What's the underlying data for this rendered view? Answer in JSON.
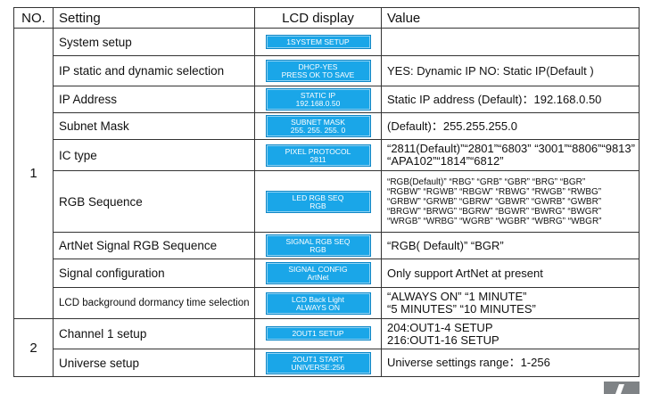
{
  "headers": {
    "no": "NO.",
    "setting": "Setting",
    "lcd": "LCD display",
    "value": "Value"
  },
  "groups": [
    {
      "no": "1"
    },
    {
      "no": "2"
    }
  ],
  "rows": [
    {
      "setting": "System setup",
      "lcd": [
        "1SYSTEM SETUP"
      ],
      "value": [
        ""
      ]
    },
    {
      "setting": "IP static and dynamic selection",
      "lcd": [
        "DHCP-YES",
        "PRESS OK TO SAVE"
      ],
      "value": [
        "YES: Dynamic  IP  NO: Static IP(Default )"
      ]
    },
    {
      "setting": "IP Address",
      "lcd": [
        "STATIC IP",
        "192.168.0.50"
      ],
      "value": [
        "Static IP address (Default)：192.168.0.50"
      ]
    },
    {
      "setting": "Subnet Mask",
      "lcd": [
        "SUBNET MASK",
        "255. 255. 255. 0"
      ],
      "value": [
        "(Default)：255.255.255.0"
      ]
    },
    {
      "setting": "IC type",
      "lcd": [
        "PIXEL PROTOCOL",
        "2811"
      ],
      "value": [
        "“2811(Default)”“2801”“6803”  “3001”“8806”“9813”",
        "“APA102”“1814”“6812”"
      ]
    },
    {
      "setting": "RGB Sequence",
      "lcd": [
        "LED RGB SEQ",
        "RGB"
      ],
      "value": [
        "“RGB(Default)” “RBG” “GRB” “GBR” “BRG” “BGR”",
        "“RGBW” “RGWB” “RBGW” “RBWG” “RWGB” “RWBG”",
        "“GRBW” “GRWB” “GBRW” “GBWR” “GWRB” “GWBR”",
        "“BRGW” “BRWG” “BGRW” “BGWR” “BWRG” “BWGR”",
        "“WRGB” “WRBG” “WGRB” “WGBR” “WBRG” “WBGR”"
      ]
    },
    {
      "setting": "ArtNet Signal RGB Sequence",
      "lcd": [
        "SIGNAL RGB SEQ",
        "RGB"
      ],
      "value": [
        "“RGB( Default)” “BGR”"
      ]
    },
    {
      "setting": "Signal configuration",
      "lcd": [
        "SIGNAL CONFIG",
        "ArtNet"
      ],
      "value": [
        "Only support  ArtNet at present"
      ]
    },
    {
      "setting": "LCD background dormancy time selection",
      "lcd": [
        "LCD Back Light",
        "ALWAYS ON"
      ],
      "value": [
        "“ALWAYS ON” “1 MINUTE”",
        "“5 MINUTES” “10 MINUTES”"
      ]
    },
    {
      "setting": "Channel 1 setup",
      "lcd": [
        "2OUT1 SETUP"
      ],
      "value": [
        "204:OUT1-4 SETUP",
        "216:OUT1-16 SETUP"
      ]
    },
    {
      "setting": "Universe setup",
      "lcd": [
        "2OUT1 START",
        "UNIVERSE:256"
      ],
      "value": [
        "Universe settings range：1-256"
      ]
    }
  ],
  "colors": {
    "lcd_button": "#1aa6e8",
    "border": "#333333",
    "page_corner": "#7f8386"
  }
}
